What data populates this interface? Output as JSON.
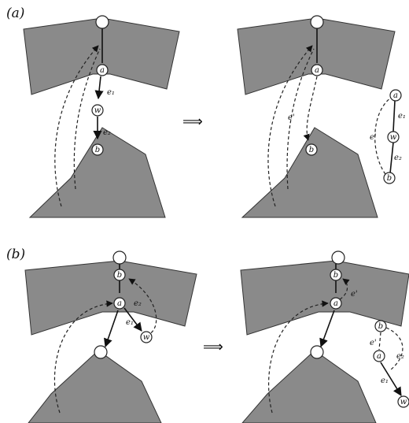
{
  "panels": {
    "a": {
      "label": "(a)"
    },
    "b": {
      "label": "(b)"
    }
  },
  "transform_symbol": "⟹",
  "nodes": {
    "a": "a",
    "b": "b",
    "w": "w"
  },
  "edges": {
    "e1": "e₁",
    "e2": "e₂",
    "e_prime": "e'"
  }
}
